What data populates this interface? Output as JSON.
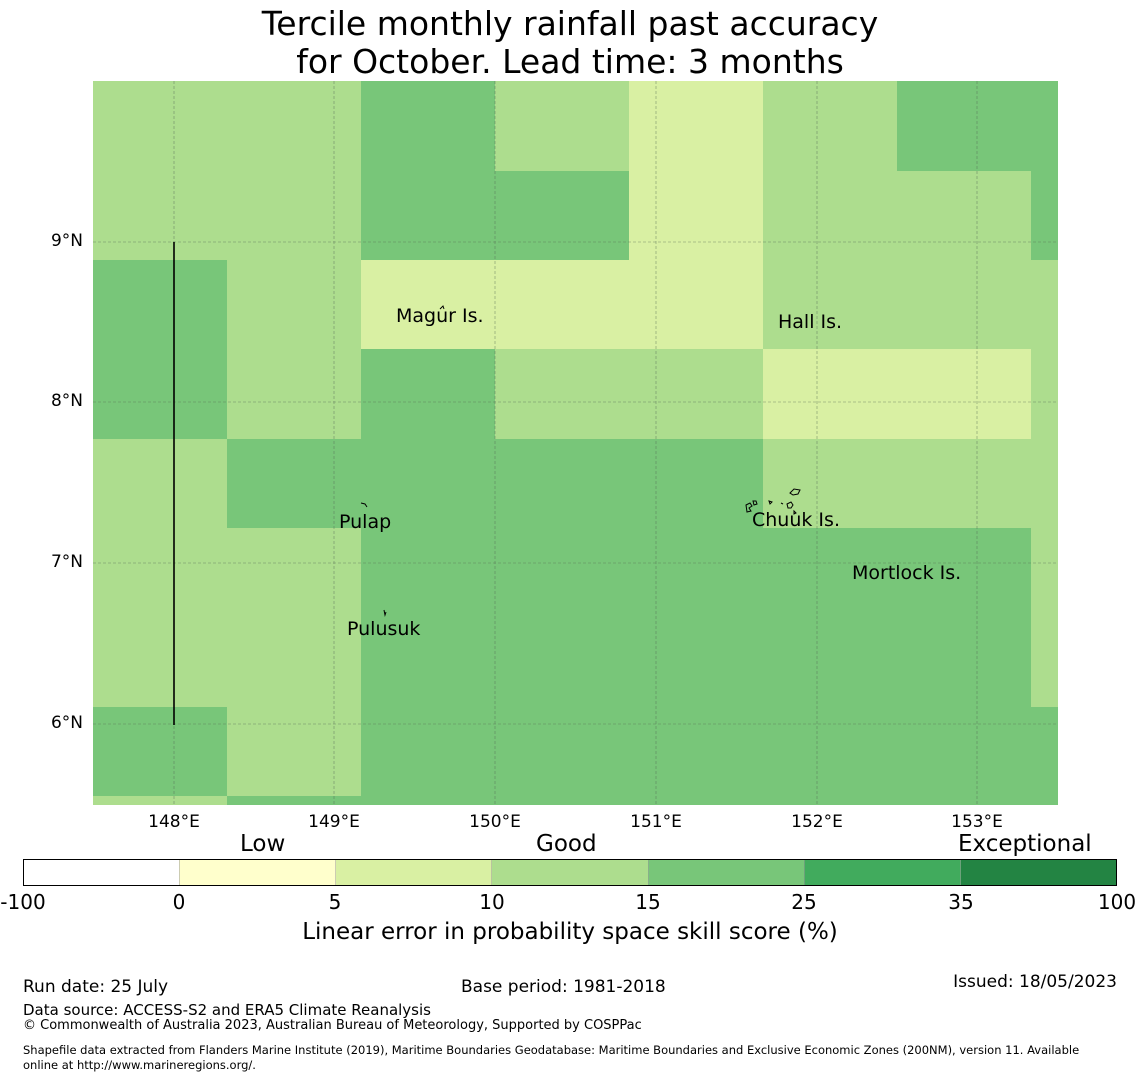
{
  "title": {
    "line1": "Tercile monthly rainfall past accuracy",
    "line2": "for October. Lead time: 3 months"
  },
  "map": {
    "lat_ticks": [
      "9°N",
      "8°N",
      "7°N",
      "6°N"
    ],
    "lon_ticks": [
      "148°E",
      "149°E",
      "150°E",
      "151°E",
      "152°E",
      "153°E"
    ],
    "islands": [
      {
        "name": "Magur Is."
      },
      {
        "name": "Hall Is."
      },
      {
        "name": "Pulap"
      },
      {
        "name": "Chuuk Is."
      },
      {
        "name": "Mortlock Is."
      },
      {
        "name": "Pulusuk"
      }
    ]
  },
  "colorbar": {
    "categories": [
      "Low",
      "Good",
      "Exceptional"
    ],
    "ticks": [
      "-100",
      "0",
      "5",
      "10",
      "15",
      "25",
      "35",
      "100"
    ],
    "colors": [
      "#ffffff",
      "#ffffcc",
      "#d9f0a3",
      "#addd8e",
      "#78c679",
      "#41ab5d",
      "#238443"
    ],
    "label": "Linear error in probability space skill score (%)"
  },
  "footer": {
    "run_date": "Run date: 25 July",
    "base_period": "Base period: 1981-2018",
    "issued": "Issued: 18/05/2023",
    "data_source": "Data source: ACCESS-S2 and ERA5 Climate Reanalysis",
    "copyright": "© Commonwealth of Australia 2023, Australian Bureau of Meteorology, Supported by COSPPac",
    "shapefile_line1": "Shapefile data extracted from Flanders Marine Institute (2019), Maritime Boundaries Geodatabase: Maritime Boundaries and Exclusive Economic Zones (200NM), version 11. Available",
    "shapefile_line2": "online at http://www.marineregions.org/."
  }
}
